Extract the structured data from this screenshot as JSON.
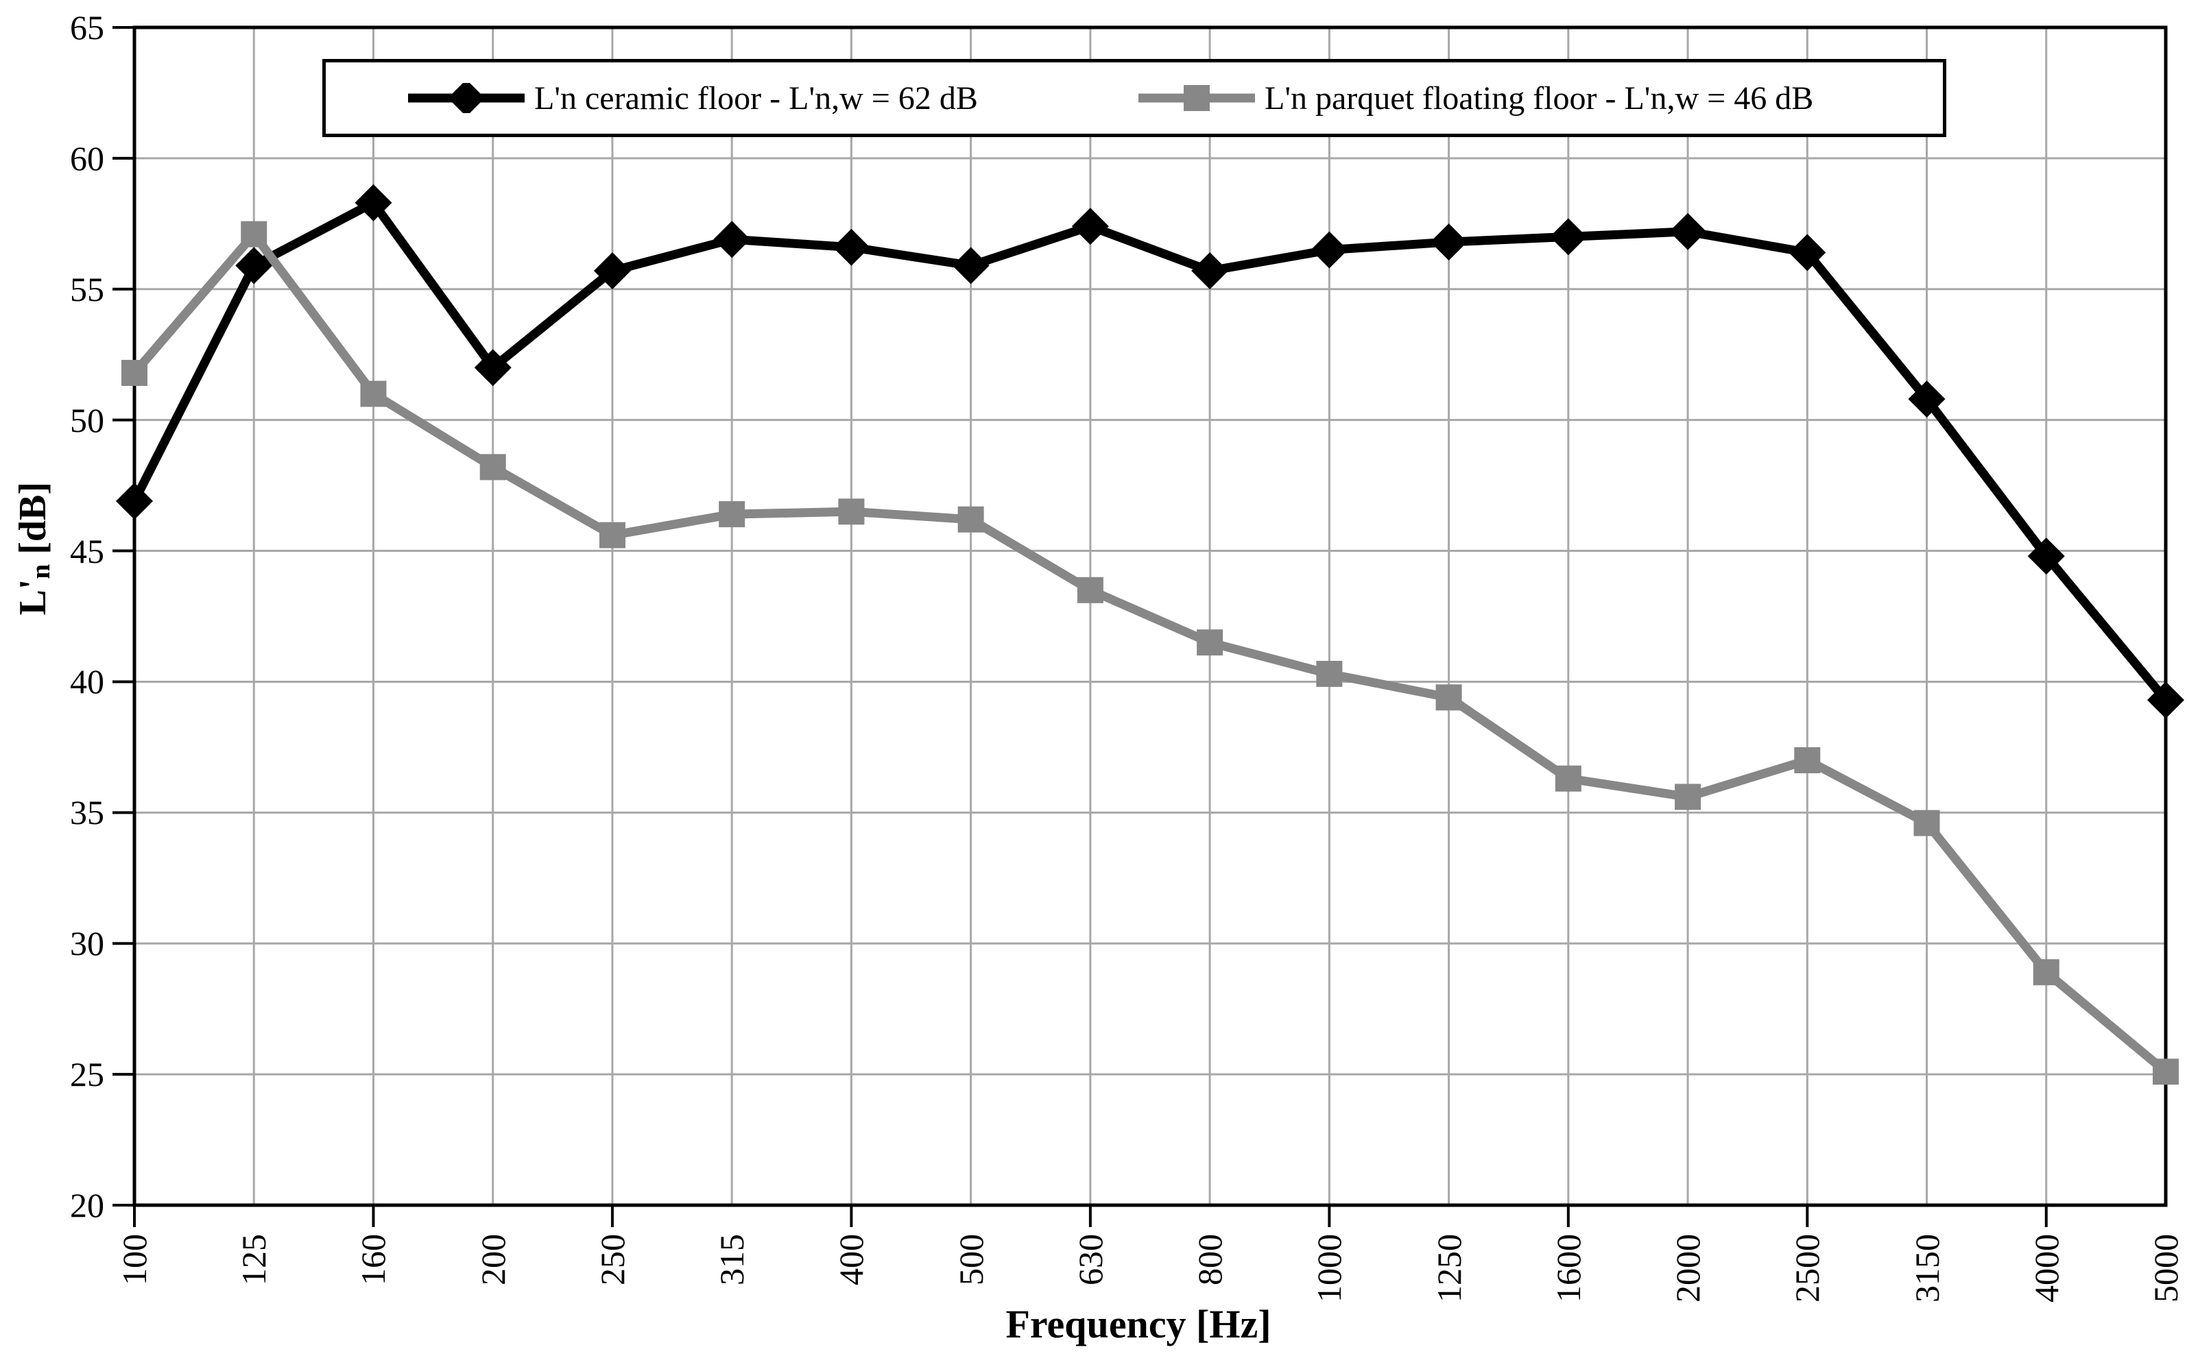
{
  "page": {
    "background": "#ffffff"
  },
  "axes": {
    "y_title_prefix": "L'",
    "y_title_sub": "n",
    "y_title_suffix": " [dB]",
    "x_title": "Frequency [Hz]",
    "y_ticks": [
      65,
      60,
      55,
      50,
      45,
      40,
      35,
      30,
      25,
      20
    ]
  },
  "chart_data": {
    "type": "line",
    "title": "",
    "categories": [
      "100",
      "125",
      "160",
      "200",
      "250",
      "315",
      "400",
      "500",
      "630",
      "800",
      "1000",
      "1250",
      "1600",
      "2000",
      "2500",
      "3150",
      "4000",
      "5000"
    ],
    "series": [
      {
        "name": "L'n ceramic floor - L'n,w = 62 dB",
        "marker": "diamond",
        "color": "#000000",
        "values": [
          46.9,
          55.9,
          58.3,
          52.0,
          55.7,
          56.9,
          56.6,
          55.9,
          57.4,
          55.7,
          56.5,
          56.8,
          57.0,
          57.2,
          56.4,
          50.8,
          44.8,
          39.3
        ]
      },
      {
        "name": "L'n parquet floating floor - L'n,w = 46 dB",
        "marker": "square",
        "color": "#878787",
        "values": [
          51.8,
          57.1,
          51.0,
          48.2,
          45.6,
          46.4,
          46.5,
          46.2,
          43.5,
          41.5,
          40.3,
          39.4,
          36.3,
          35.6,
          37.0,
          34.6,
          28.9,
          25.1
        ]
      }
    ],
    "xlabel": "Frequency [Hz]",
    "ylabel": "L'n [dB]",
    "ylim": [
      20,
      65
    ],
    "y_tick_step": 5,
    "x_major_tick_every": 2,
    "grid": true,
    "legend_position": "top-center-inside",
    "colors": {
      "grid": "#a8a8a8",
      "axis": "#000000",
      "background": "#ffffff"
    }
  }
}
